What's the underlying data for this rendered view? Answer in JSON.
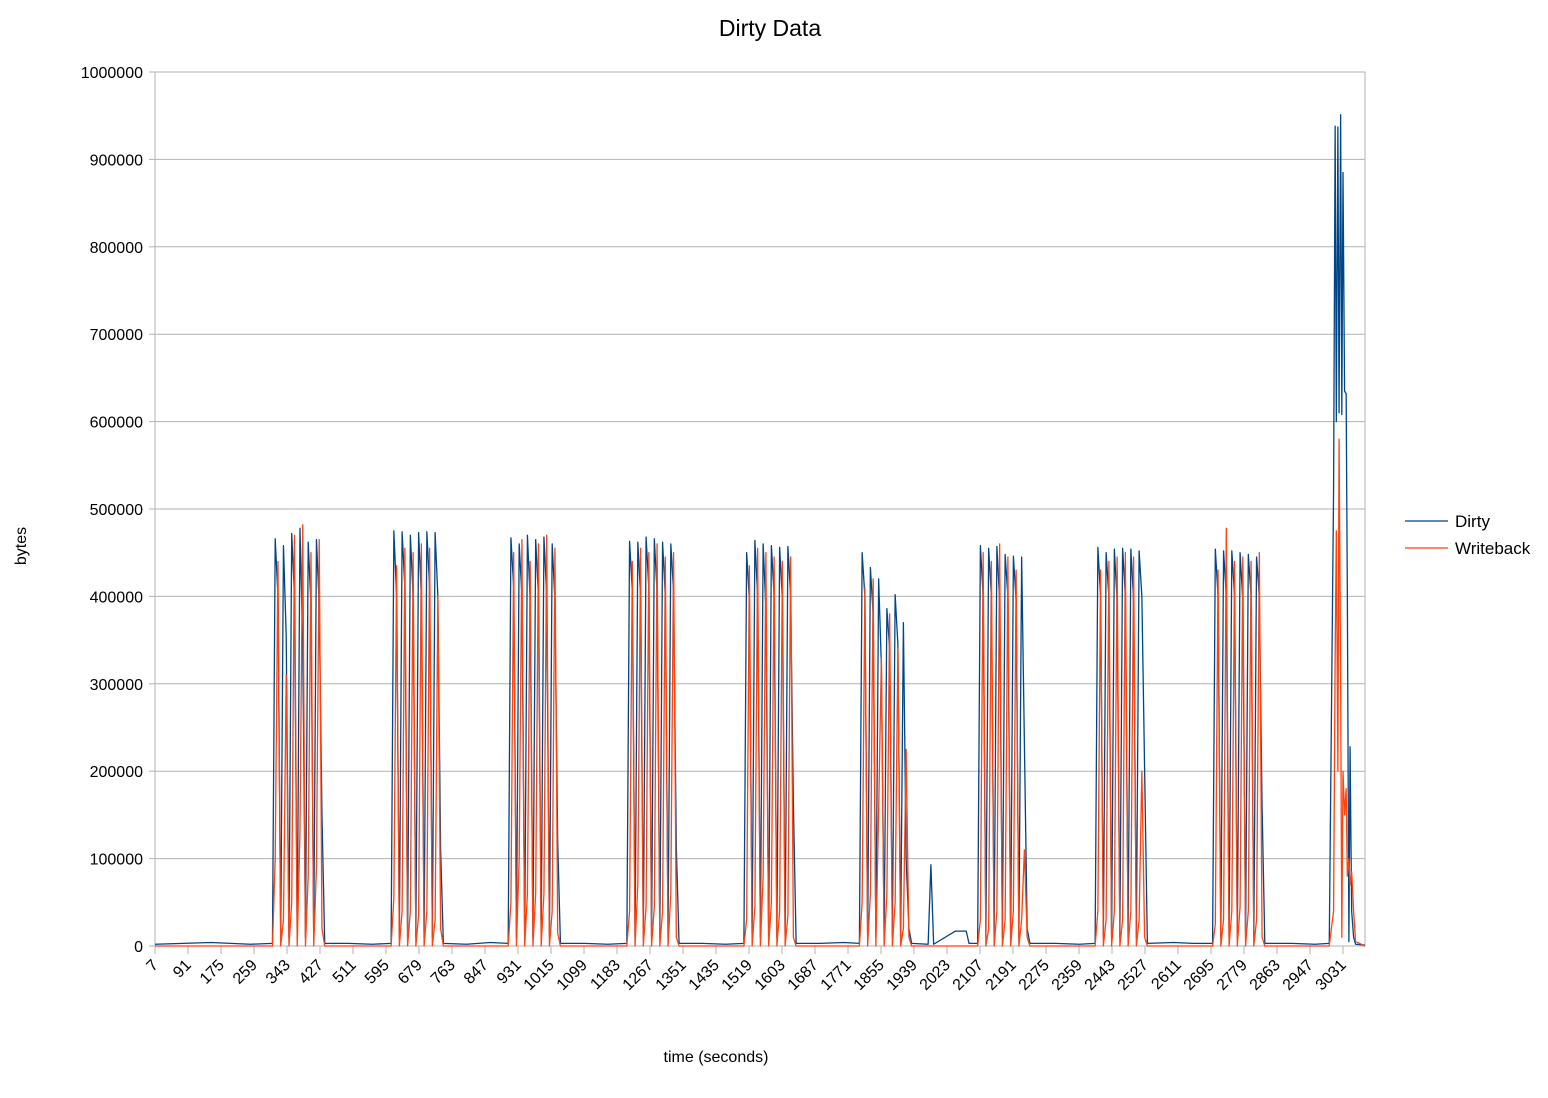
{
  "chart_data": {
    "type": "line",
    "title": "Dirty Data",
    "xlabel": "time (seconds)",
    "ylabel": "bytes",
    "xlim": [
      7,
      3087
    ],
    "ylim": [
      0,
      1000000
    ],
    "xticks": [
      7,
      91,
      175,
      259,
      343,
      427,
      511,
      595,
      679,
      763,
      847,
      931,
      1015,
      1099,
      1183,
      1267,
      1351,
      1435,
      1519,
      1603,
      1687,
      1771,
      1855,
      1939,
      2023,
      2107,
      2191,
      2275,
      2359,
      2443,
      2527,
      2611,
      2695,
      2779,
      2863,
      2947,
      3031
    ],
    "yticks": [
      0,
      100000,
      200000,
      300000,
      400000,
      500000,
      600000,
      700000,
      800000,
      900000,
      1000000
    ],
    "grid": true,
    "legend": "right",
    "x": [
      7,
      150,
      250,
      306,
      313,
      320,
      327,
      334,
      341,
      348,
      355,
      362,
      369,
      376,
      383,
      390,
      397,
      404,
      411,
      418,
      425,
      432,
      439,
      500,
      560,
      608,
      615,
      622,
      629,
      636,
      643,
      650,
      657,
      664,
      671,
      678,
      685,
      692,
      699,
      706,
      713,
      720,
      727,
      734,
      741,
      800,
      860,
      906,
      913,
      920,
      927,
      934,
      941,
      948,
      955,
      962,
      969,
      976,
      983,
      990,
      997,
      1004,
      1011,
      1018,
      1025,
      1032,
      1039,
      1100,
      1160,
      1208,
      1215,
      1222,
      1229,
      1236,
      1243,
      1250,
      1257,
      1264,
      1271,
      1278,
      1285,
      1292,
      1299,
      1306,
      1313,
      1320,
      1327,
      1334,
      1341,
      1400,
      1460,
      1506,
      1513,
      1520,
      1527,
      1534,
      1541,
      1548,
      1555,
      1562,
      1569,
      1576,
      1583,
      1590,
      1597,
      1604,
      1611,
      1618,
      1625,
      1632,
      1639,
      1700,
      1760,
      1800,
      1807,
      1814,
      1821,
      1828,
      1835,
      1842,
      1849,
      1856,
      1863,
      1870,
      1877,
      1884,
      1891,
      1898,
      1905,
      1912,
      1919,
      1926,
      1933,
      1975,
      1982,
      1989,
      2044,
      2072,
      2079,
      2101,
      2108,
      2115,
      2122,
      2129,
      2136,
      2143,
      2150,
      2157,
      2164,
      2171,
      2178,
      2185,
      2192,
      2199,
      2206,
      2213,
      2220,
      2227,
      2234,
      2300,
      2360,
      2400,
      2407,
      2414,
      2421,
      2428,
      2435,
      2442,
      2449,
      2456,
      2463,
      2470,
      2477,
      2484,
      2491,
      2498,
      2505,
      2512,
      2519,
      2526,
      2533,
      2600,
      2650,
      2699,
      2706,
      2713,
      2720,
      2727,
      2734,
      2741,
      2748,
      2755,
      2762,
      2769,
      2776,
      2783,
      2790,
      2797,
      2804,
      2811,
      2818,
      2825,
      2832,
      2900,
      2960,
      2996,
      3007,
      3011,
      3014,
      3018,
      3021,
      3025,
      3028,
      3031,
      3035,
      3039,
      3042,
      3046,
      3049,
      3053,
      3058,
      3063,
      3087
    ],
    "series": [
      {
        "name": "Dirty",
        "color": "#004586",
        "values": [
          2000,
          4000,
          2000,
          3000,
          466000,
          400000,
          10000,
          458000,
          355000,
          10000,
          472000,
          400000,
          10000,
          478000,
          345000,
          10000,
          462000,
          390000,
          10000,
          465000,
          390000,
          150000,
          3000,
          3000,
          2000,
          3000,
          475000,
          400000,
          10000,
          474000,
          410000,
          10000,
          470000,
          400000,
          10000,
          473000,
          400000,
          10000,
          474000,
          410000,
          10000,
          473000,
          400000,
          110000,
          3000,
          2000,
          4000,
          3000,
          467000,
          410000,
          10000,
          460000,
          400000,
          10000,
          470000,
          395000,
          10000,
          465000,
          400000,
          10000,
          468000,
          400000,
          10000,
          460000,
          395000,
          120000,
          3000,
          3000,
          2000,
          3000,
          463000,
          405000,
          10000,
          462000,
          400000,
          10000,
          468000,
          410000,
          10000,
          466000,
          405000,
          10000,
          462000,
          400000,
          10000,
          460000,
          405000,
          113000,
          3000,
          3000,
          2000,
          3000,
          450000,
          395000,
          10000,
          464000,
          400000,
          10000,
          460000,
          385000,
          10000,
          458000,
          400000,
          10000,
          456000,
          395000,
          10000,
          457000,
          400000,
          162000,
          3000,
          3000,
          4000,
          3000,
          450000,
          400000,
          10000,
          433000,
          380000,
          10000,
          420000,
          320000,
          10000,
          386000,
          340000,
          10000,
          402000,
          345000,
          10000,
          370000,
          100000,
          20000,
          3000,
          2000,
          93000,
          2000,
          17000,
          17000,
          3000,
          3000,
          458000,
          400000,
          10000,
          455000,
          400000,
          10000,
          457000,
          395000,
          10000,
          448000,
          400000,
          10000,
          446000,
          395000,
          10000,
          445000,
          232000,
          20000,
          3000,
          3000,
          2000,
          3000,
          456000,
          400000,
          10000,
          450000,
          400000,
          10000,
          454000,
          395000,
          10000,
          455000,
          400000,
          10000,
          454000,
          395000,
          10000,
          452000,
          400000,
          202000,
          3000,
          4000,
          3000,
          3000,
          454000,
          400000,
          10000,
          452000,
          400000,
          10000,
          452000,
          400000,
          10000,
          450000,
          395000,
          10000,
          448000,
          400000,
          10000,
          445000,
          400000,
          160000,
          3000,
          3000,
          2000,
          3000,
          520000,
          938000,
          600000,
          937000,
          610000,
          951000,
          608000,
          885000,
          635000,
          632000,
          408000,
          5000,
          228000,
          40000,
          10000,
          2000,
          1000
        ]
      },
      {
        "name": "Writeback",
        "color": "#ff420e",
        "values": [
          0,
          0,
          0,
          0,
          100000,
          440000,
          0,
          30000,
          310000,
          0,
          50000,
          470000,
          0,
          130000,
          482000,
          0,
          80000,
          450000,
          0,
          90000,
          465000,
          20000,
          0,
          0,
          0,
          0,
          55000,
          435000,
          0,
          40000,
          455000,
          0,
          40000,
          450000,
          0,
          35000,
          460000,
          0,
          40000,
          455000,
          0,
          30000,
          400000,
          20000,
          0,
          0,
          0,
          0,
          50000,
          450000,
          0,
          100000,
          465000,
          0,
          60000,
          440000,
          0,
          60000,
          460000,
          0,
          60000,
          470000,
          0,
          40000,
          455000,
          15000,
          0,
          0,
          0,
          0,
          40000,
          440000,
          0,
          70000,
          455000,
          0,
          45000,
          450000,
          0,
          45000,
          460000,
          0,
          40000,
          445000,
          0,
          60000,
          450000,
          10000,
          0,
          0,
          0,
          0,
          30000,
          435000,
          0,
          45000,
          455000,
          0,
          80000,
          450000,
          0,
          50000,
          445000,
          0,
          40000,
          440000,
          0,
          35000,
          445000,
          10000,
          0,
          0,
          0,
          0,
          50000,
          410000,
          0,
          60000,
          420000,
          0,
          155000,
          330000,
          0,
          60000,
          380000,
          0,
          50000,
          340000,
          0,
          20000,
          225000,
          10000,
          0,
          0,
          0,
          0,
          0,
          0,
          0,
          0,
          30000,
          450000,
          0,
          20000,
          440000,
          0,
          40000,
          460000,
          0,
          30000,
          445000,
          0,
          40000,
          430000,
          0,
          30000,
          110000,
          10000,
          0,
          0,
          0,
          0,
          40000,
          430000,
          0,
          30000,
          440000,
          0,
          40000,
          445000,
          0,
          30000,
          450000,
          0,
          40000,
          445000,
          0,
          30000,
          200000,
          10000,
          0,
          0,
          0,
          0,
          25000,
          430000,
          0,
          30000,
          478000,
          0,
          40000,
          440000,
          0,
          45000,
          445000,
          0,
          40000,
          440000,
          0,
          30000,
          450000,
          10000,
          0,
          0,
          0,
          0,
          40000,
          330000,
          475000,
          200000,
          580000,
          300000,
          10000,
          200000,
          150000,
          180000,
          80000,
          100000,
          70000,
          85000,
          40000,
          5000,
          0
        ]
      }
    ]
  }
}
